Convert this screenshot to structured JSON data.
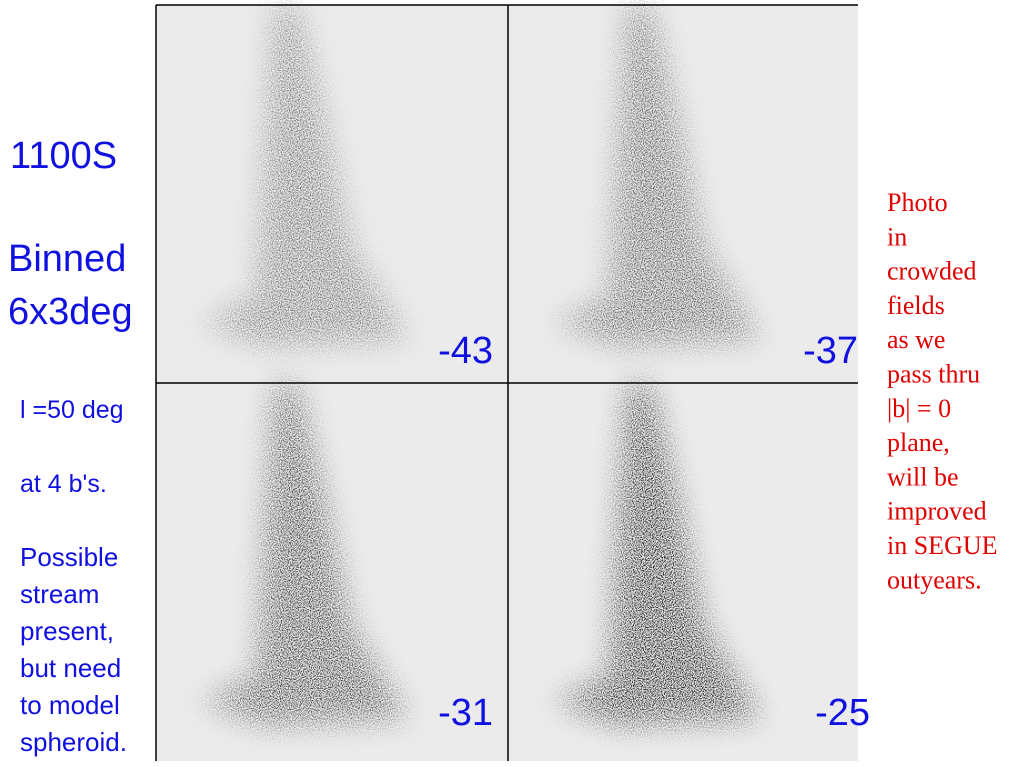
{
  "left": {
    "title": "1100S",
    "subtitle_lines": [
      "Binned",
      "6x3deg"
    ],
    "notes": [
      "l =50 deg",
      "at 4 b's."
    ],
    "comment_lines": [
      "Possible",
      "stream",
      "present,",
      "but need",
      "to model",
      "spheroid."
    ]
  },
  "panels": [
    {
      "label": "-43"
    },
    {
      "label": "-37"
    },
    {
      "label": "-31"
    },
    {
      "label": "-25"
    }
  ],
  "side_note": {
    "lines": [
      "Photo",
      "in",
      "crowded",
      "fields",
      "as we",
      "pass thru",
      "|b| = 0",
      "plane,",
      "will be",
      "improved",
      "in SEGUE",
      "outyears."
    ]
  }
}
